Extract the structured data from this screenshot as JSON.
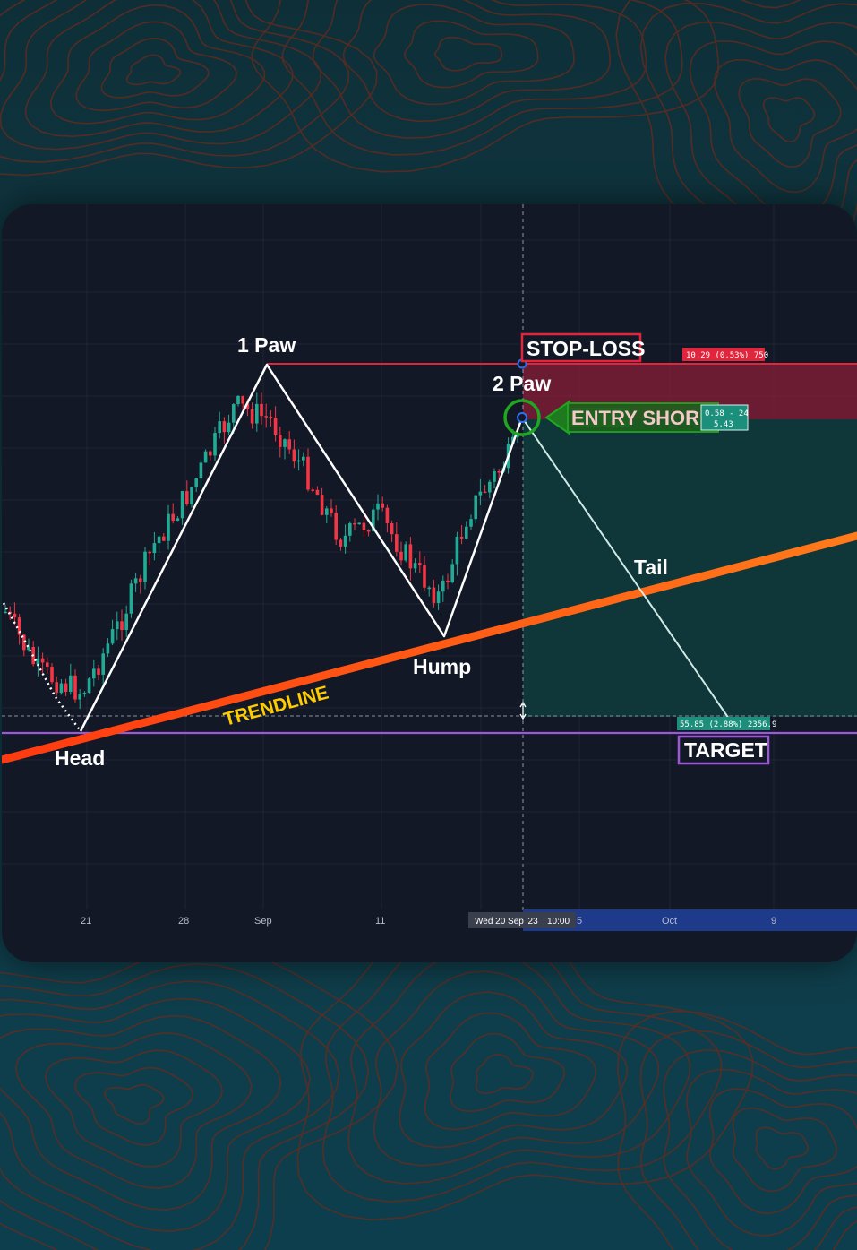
{
  "chart_data": {
    "type": "candlestick",
    "title": "",
    "xlabel": "",
    "ylabel": "",
    "x_ticks": [
      "21",
      "28",
      "Sep",
      "11",
      "Wed 20 Sep '23",
      "10:00",
      "5",
      "Oct",
      "9"
    ],
    "crosshair_label": "Wed 20 Sep '23",
    "crosshair_time": "10:00",
    "annotations": {
      "paw1": "1 Paw",
      "paw2": "2 Paw",
      "head": "Head",
      "hump": "Hump",
      "tail": "Tail",
      "trendline": "TRENDLINE",
      "stop_loss": "STOP-LOSS",
      "entry": "ENTRY SHOR",
      "target": "TARGET"
    },
    "stop_label": "10.29 (0.53%) 750",
    "entry_label_top": "0.58 - 24",
    "entry_label_bottom": "5.43",
    "target_label": "55.85 (2.88%) 2356.9",
    "pattern_points": [
      {
        "name": "Head",
        "date": "Aug 21"
      },
      {
        "name": "1 Paw",
        "date": "Sep 1"
      },
      {
        "name": "Hump",
        "date": "Sep 15"
      },
      {
        "name": "2 Paw",
        "date": "Sep 20"
      },
      {
        "name": "Tail",
        "date": "Oct 9"
      }
    ],
    "colors": {
      "up": "#22ab94",
      "down": "#f23645",
      "trendline": "#ff5a14",
      "stop_zone": "#7c1d35",
      "target_zone": "#103a3c",
      "stop_line": "#e0253d",
      "target_line": "#9b59d8",
      "entry": "#1fa81f",
      "trendline_text": "#ffcc00"
    },
    "grid": true
  }
}
